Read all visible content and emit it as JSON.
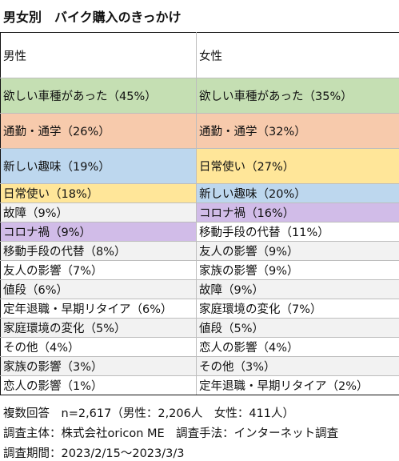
{
  "title": "男女別　バイク購入のきっかけ",
  "header": {
    "male": "男性",
    "female": "女性"
  },
  "colors": {
    "green": "#c5dfb3",
    "orange": "#f7caac",
    "blue": "#bdd7ee",
    "yellow": "#ffe699",
    "purple": "#d1bce8",
    "gray": "#f2f2f2",
    "white": "#ffffff"
  },
  "rows": [
    {
      "male": "欲しい車種があった（45%）",
      "female": "欲しい車種があった（35%）"
    },
    {
      "male": "通勤・通学（26%）",
      "female": "通勤・通学（32%）"
    },
    {
      "male": "新しい趣味（19%）",
      "female": "日常使い（27%）"
    },
    {
      "male": "日常使い（18%）",
      "female": "新しい趣味（20%）"
    },
    {
      "male": "故障（9%）",
      "female": "コロナ禍（16%）"
    },
    {
      "male": "コロナ禍（9%）",
      "female": "移動手段の代替（11%）"
    },
    {
      "male": "移動手段の代替（8%）",
      "female": "友人の影響（9%）"
    },
    {
      "male": "友人の影響（7%）",
      "female": "家族の影響（9%）"
    },
    {
      "male": "値段（6%）",
      "female": "故障（9%）"
    },
    {
      "male": "定年退職・早期リタイア（6%）",
      "female": "家庭環境の変化（7%）"
    },
    {
      "male": "家庭環境の変化（5%）",
      "female": "値段（5%）"
    },
    {
      "male": "その他（4%）",
      "female": "恋人の影響（4%）"
    },
    {
      "male": "家族の影響（3%）",
      "female": "その他（3%）"
    },
    {
      "male": "恋人の影響（1%）",
      "female": "定年退職・早期リタイア（2%）"
    }
  ],
  "footer": {
    "line1": "複数回答　n=2,617（男性：2,206人　女性：411人）",
    "line2": "調査主体：株式会社oricon ME　調査手法：インターネット調査",
    "line3": "調査期間：2023/2/15～2023/3/3"
  }
}
